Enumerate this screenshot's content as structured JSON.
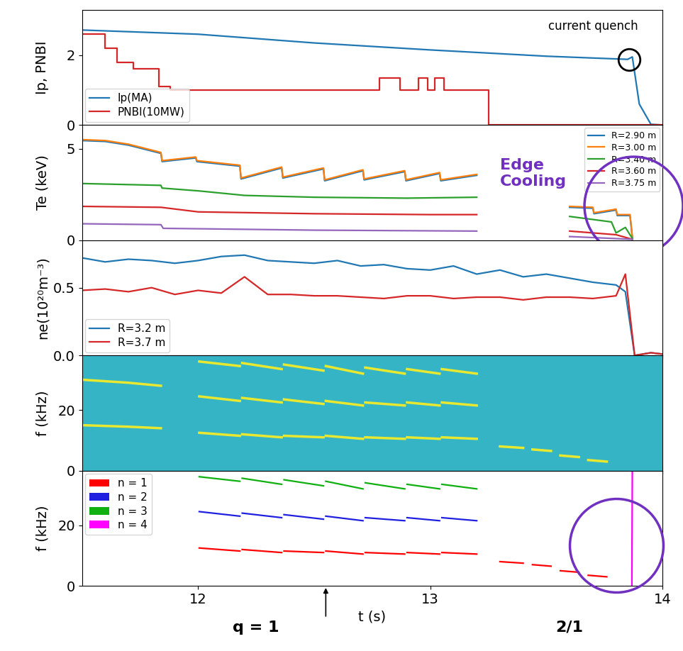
{
  "chart_data": [
    {
      "type": "line",
      "ylabel": "Ip, PNBI",
      "xlim": [
        11.5,
        14.0
      ],
      "xticks": [
        12,
        13,
        14
      ],
      "ylim": [
        0,
        3.3
      ],
      "yticks": [
        0,
        2
      ],
      "tick_labels": "y",
      "legend": "lower left",
      "annotations": [
        "current quench"
      ],
      "series": [
        {
          "name": "Ip(MA)",
          "color": "#1f77b4",
          "type": "line",
          "x": [
            11.5,
            12.0,
            12.5,
            13.0,
            13.5,
            13.85,
            13.87,
            13.9,
            13.95,
            14.0
          ],
          "values": [
            2.72,
            2.6,
            2.35,
            2.15,
            1.97,
            1.88,
            1.95,
            0.6,
            0.02,
            0.0
          ]
        },
        {
          "name": "PNBI(10MW)",
          "color": "#d62728",
          "type": "step",
          "x": [
            11.5,
            11.6,
            11.65,
            11.72,
            11.83,
            11.88,
            12.78,
            12.87,
            12.95,
            12.99,
            13.02,
            13.06,
            13.25,
            14.0
          ],
          "values": [
            2.6,
            2.2,
            1.8,
            1.6,
            1.1,
            1.0,
            1.35,
            1.0,
            1.35,
            1.0,
            1.35,
            1.0,
            0.0,
            0.0
          ]
        }
      ]
    },
    {
      "type": "line",
      "ylabel": "Te (keV)",
      "xlim": [
        11.5,
        14.0
      ],
      "xticks": [
        12,
        13,
        14
      ],
      "ylim": [
        0,
        6.3
      ],
      "yticks": [
        0,
        5
      ],
      "tick_labels": "y",
      "legend": "upper right",
      "annotations": [
        "Edge\nCooling"
      ],
      "series": [
        {
          "name": "R=2.90 m",
          "color": "#1f77b4",
          "x": [
            11.5,
            11.6,
            11.7,
            11.84,
            11.845,
            11.99,
            11.995,
            12.18,
            12.185,
            12.36,
            12.365,
            12.54,
            12.545,
            12.71,
            12.715,
            12.89,
            12.895,
            13.04,
            13.045,
            13.2,
            13.25,
            13.6,
            13.7,
            13.705,
            13.8,
            13.805,
            13.86,
            13.87
          ],
          "values": [
            5.45,
            5.4,
            5.2,
            4.75,
            4.3,
            4.5,
            4.3,
            4.05,
            3.35,
            3.95,
            3.4,
            3.9,
            3.25,
            3.8,
            3.3,
            3.75,
            3.25,
            3.65,
            3.25,
            3.55,
            null,
            1.8,
            1.75,
            1.45,
            1.65,
            1.35,
            1.35,
            0.15
          ]
        },
        {
          "name": "R=3.00 m",
          "color": "#ff7f0e",
          "x": [
            11.5,
            11.6,
            11.7,
            11.84,
            11.845,
            11.99,
            11.995,
            12.18,
            12.185,
            12.36,
            12.365,
            12.54,
            12.545,
            12.71,
            12.715,
            12.89,
            12.895,
            13.04,
            13.045,
            13.2,
            13.25,
            13.6,
            13.7,
            13.705,
            13.8,
            13.805,
            13.86,
            13.87
          ],
          "values": [
            5.5,
            5.45,
            5.25,
            4.8,
            4.35,
            4.55,
            4.35,
            4.1,
            3.4,
            4.0,
            3.45,
            3.95,
            3.3,
            3.85,
            3.35,
            3.8,
            3.3,
            3.7,
            3.3,
            3.6,
            null,
            1.85,
            1.8,
            1.5,
            1.7,
            1.4,
            1.4,
            0.2
          ]
        },
        {
          "name": "R=3.40 m",
          "color": "#2ca02c",
          "x": [
            11.5,
            11.84,
            11.845,
            12.0,
            12.2,
            12.5,
            12.9,
            13.2,
            13.25,
            13.6,
            13.78,
            13.8,
            13.84,
            13.87
          ],
          "values": [
            3.1,
            3.0,
            2.85,
            2.7,
            2.45,
            2.35,
            2.3,
            2.35,
            null,
            1.3,
            1.0,
            0.4,
            0.7,
            0.1
          ]
        },
        {
          "name": "R=3.60 m",
          "color": "#d62728",
          "x": [
            11.5,
            11.84,
            12.0,
            12.5,
            13.0,
            13.2,
            13.25,
            13.6,
            13.8,
            13.87
          ],
          "values": [
            1.85,
            1.8,
            1.55,
            1.45,
            1.4,
            1.4,
            null,
            0.5,
            0.3,
            0.05
          ]
        },
        {
          "name": "R=3.75 m",
          "color": "#9467bd",
          "x": [
            11.5,
            11.84,
            11.85,
            12.5,
            13.2,
            13.25,
            13.6,
            13.87
          ],
          "values": [
            0.9,
            0.85,
            0.65,
            0.55,
            0.5,
            null,
            0.2,
            0.05
          ]
        }
      ]
    },
    {
      "type": "line",
      "ylabel": "ne(10²⁰m⁻³)",
      "xlim": [
        11.5,
        14.0
      ],
      "xticks": [
        12,
        13,
        14
      ],
      "ylim": [
        0,
        0.85
      ],
      "yticks": [
        {
          "value": 0,
          "label": "0.0"
        },
        {
          "value": 0.5,
          "label": "0.5"
        }
      ],
      "tick_labels": "y",
      "legend": "lower left",
      "series": [
        {
          "name": "R=3.2 m",
          "color": "#1f77b4",
          "x": [
            11.5,
            11.6,
            11.7,
            11.8,
            11.9,
            12.0,
            12.1,
            12.2,
            12.3,
            12.4,
            12.5,
            12.6,
            12.7,
            12.8,
            12.9,
            13.0,
            13.1,
            13.2,
            13.3,
            13.4,
            13.5,
            13.6,
            13.7,
            13.8,
            13.84,
            13.88,
            13.95,
            14.0
          ],
          "values": [
            0.72,
            0.69,
            0.71,
            0.7,
            0.68,
            0.7,
            0.73,
            0.74,
            0.7,
            0.69,
            0.68,
            0.7,
            0.66,
            0.67,
            0.64,
            0.63,
            0.66,
            0.6,
            0.63,
            0.58,
            0.6,
            0.57,
            0.54,
            0.52,
            0.47,
            0.0,
            0.02,
            0.01
          ]
        },
        {
          "name": "R=3.7 m",
          "color": "#d62728",
          "x": [
            11.5,
            11.6,
            11.7,
            11.8,
            11.9,
            12.0,
            12.1,
            12.2,
            12.3,
            12.4,
            12.5,
            12.6,
            12.7,
            12.8,
            12.9,
            13.0,
            13.1,
            13.2,
            13.3,
            13.4,
            13.5,
            13.6,
            13.7,
            13.8,
            13.84,
            13.88,
            13.95,
            14.0
          ],
          "values": [
            0.48,
            0.49,
            0.47,
            0.5,
            0.45,
            0.48,
            0.46,
            0.58,
            0.45,
            0.45,
            0.44,
            0.44,
            0.43,
            0.42,
            0.44,
            0.44,
            0.42,
            0.43,
            0.43,
            0.41,
            0.43,
            0.43,
            0.42,
            0.44,
            0.6,
            0.0,
            0.02,
            0.01
          ]
        }
      ]
    },
    {
      "type": "spectrogram",
      "ylabel": "f (kHz)",
      "xlim": [
        11.5,
        14.0
      ],
      "xticks": [
        12,
        13,
        14
      ],
      "ylim": [
        0,
        38
      ],
      "yticks": [
        0,
        20
      ],
      "tick_labels": "y",
      "series": [
        {
          "color": "#e8e830",
          "x": [
            11.5,
            11.7,
            11.84,
            11.845,
            12.005,
            12.18,
            12.185,
            12.19,
            12.36,
            12.365,
            12.37,
            12.54,
            12.545,
            12.55,
            12.71,
            12.715,
            12.72,
            12.89,
            12.895,
            12.9,
            13.04,
            13.045,
            13.05,
            13.2,
            13.25,
            13.3,
            13.4,
            13.42,
            13.44,
            13.52,
            13.54,
            13.56,
            13.64,
            13.66,
            13.68,
            13.76
          ],
          "values": [
            15,
            14.5,
            14,
            null,
            12.5,
            11.5,
            null,
            12,
            11,
            null,
            11.5,
            11,
            null,
            11.5,
            10.5,
            null,
            11,
            10.5,
            null,
            11,
            10.5,
            null,
            11,
            10.5,
            null,
            8,
            7.5,
            null,
            7,
            6.5,
            null,
            5,
            4.5,
            null,
            3.5,
            3
          ]
        },
        {
          "color": "#e8e830",
          "x": [
            11.5,
            11.7,
            11.84,
            11.845,
            12.005,
            12.18,
            12.185,
            12.19,
            12.36,
            12.365,
            12.37,
            12.54,
            12.545,
            12.55,
            12.71,
            12.715,
            12.72,
            12.89,
            12.895,
            12.9,
            13.04,
            13.045,
            13.05,
            13.2
          ],
          "values": [
            30,
            29,
            28,
            null,
            24.5,
            23,
            null,
            24,
            22.5,
            null,
            23.5,
            22,
            null,
            23,
            21.5,
            null,
            22.5,
            21.5,
            null,
            22.5,
            21.5,
            null,
            22.5,
            21.5
          ]
        },
        {
          "color": "#e8e830",
          "x": [
            12.005,
            12.18,
            12.185,
            12.19,
            12.36,
            12.365,
            12.37,
            12.54,
            12.545,
            12.55,
            12.71,
            12.715,
            12.72,
            12.89,
            12.895,
            12.9,
            13.04,
            13.045,
            13.05,
            13.2
          ],
          "values": [
            36,
            34.5,
            null,
            35.5,
            33.5,
            null,
            35,
            33,
            null,
            34.5,
            32,
            null,
            34,
            32,
            null,
            33.5,
            32,
            null,
            33.5,
            32
          ]
        }
      ]
    },
    {
      "type": "line",
      "ylabel": "f (kHz)",
      "xlabel": "t (s)",
      "xlim": [
        11.5,
        14.0
      ],
      "xticks": [
        12,
        13,
        14
      ],
      "ylim": [
        0,
        38
      ],
      "yticks": [
        0,
        20
      ],
      "legend": "upper left",
      "annotations": [
        "q = 1",
        "2/1"
      ],
      "series": [
        {
          "name": "n = 1",
          "color": "#ff0000",
          "marker": "square",
          "x": [
            12.005,
            12.18,
            12.185,
            12.19,
            12.36,
            12.365,
            12.37,
            12.54,
            12.545,
            12.55,
            12.71,
            12.715,
            12.72,
            12.89,
            12.895,
            12.9,
            13.04,
            13.045,
            13.05,
            13.2,
            13.25,
            13.3,
            13.4,
            13.42,
            13.44,
            13.52,
            13.54,
            13.56,
            13.64,
            13.66,
            13.68,
            13.76
          ],
          "values": [
            12.5,
            11.5,
            null,
            12,
            11,
            null,
            11.5,
            11,
            null,
            11.5,
            10.5,
            null,
            11,
            10.5,
            null,
            11,
            10.5,
            null,
            11,
            10.5,
            null,
            8,
            7.5,
            null,
            7,
            6.5,
            null,
            5,
            4.5,
            null,
            3.5,
            3
          ]
        },
        {
          "name": "n = 2",
          "color": "#2020e0",
          "marker": "square",
          "x": [
            12.005,
            12.18,
            12.185,
            12.19,
            12.36,
            12.365,
            12.37,
            12.54,
            12.545,
            12.55,
            12.71,
            12.715,
            12.72,
            12.89,
            12.895,
            12.9,
            13.04,
            13.045,
            13.05,
            13.2
          ],
          "values": [
            24.5,
            23,
            null,
            24,
            22.5,
            null,
            23.5,
            22,
            null,
            23,
            21.5,
            null,
            22.5,
            21.5,
            null,
            22.5,
            21.5,
            null,
            22.5,
            21.5
          ]
        },
        {
          "name": "n = 3",
          "color": "#10b010",
          "marker": "square",
          "x": [
            12.005,
            12.18,
            12.185,
            12.19,
            12.36,
            12.365,
            12.37,
            12.54,
            12.545,
            12.55,
            12.71,
            12.715,
            12.72,
            12.89,
            12.895,
            12.9,
            13.04,
            13.045,
            13.05,
            13.2
          ],
          "values": [
            36,
            34.5,
            null,
            35.5,
            33.5,
            null,
            35,
            33,
            null,
            34.5,
            32,
            null,
            34,
            32,
            null,
            33.5,
            32,
            null,
            33.5,
            32
          ]
        },
        {
          "name": "n = 4",
          "color": "#ff00ff",
          "marker": "square",
          "x": [
            13.868,
            13.87
          ],
          "values": [
            0,
            38
          ]
        }
      ]
    }
  ]
}
